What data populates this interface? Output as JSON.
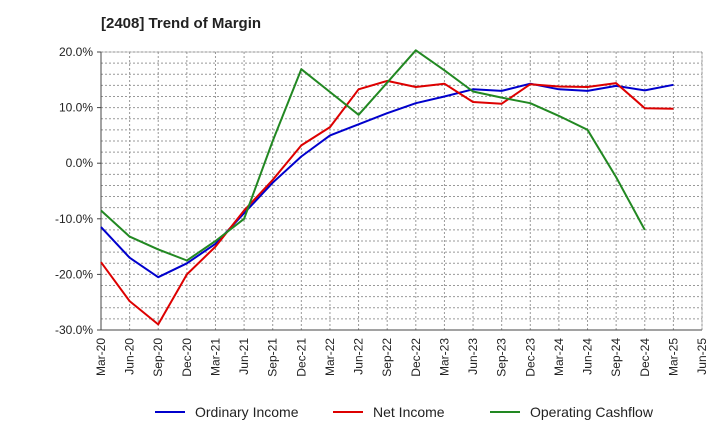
{
  "chart_data": {
    "type": "line",
    "title": "[2408]  Trend of Margin",
    "x": [
      "Mar-20",
      "Jun-20",
      "Sep-20",
      "Dec-20",
      "Mar-21",
      "Jun-21",
      "Sep-21",
      "Dec-21",
      "Mar-22",
      "Jun-22",
      "Sep-22",
      "Dec-22",
      "Mar-23",
      "Jun-23",
      "Sep-23",
      "Dec-23",
      "Mar-24",
      "Jun-24",
      "Sep-24",
      "Dec-24",
      "Mar-25",
      "Jun-25"
    ],
    "yticks": [
      "20.0%",
      "10.0%",
      "0.0%",
      "-10.0%",
      "-20.0%",
      "-30.0%"
    ],
    "ylim": [
      -30,
      20
    ],
    "grid": true,
    "legend_position": "bottom",
    "series": [
      {
        "name": "Ordinary Income",
        "color": "#0000cc",
        "values": [
          -11.5,
          -17.0,
          -20.5,
          -18.0,
          -14.5,
          -9.0,
          -3.5,
          1.2,
          5.0,
          7.0,
          9.0,
          10.8,
          12.0,
          13.3,
          13.0,
          14.3,
          13.3,
          13.0,
          13.9,
          13.1,
          14.1,
          null
        ]
      },
      {
        "name": "Net Income",
        "color": "#dd0000",
        "values": [
          -17.8,
          -24.8,
          -29.0,
          -20.0,
          -15.0,
          -8.5,
          -3.0,
          3.2,
          6.5,
          13.3,
          14.8,
          13.7,
          14.3,
          11.0,
          10.7,
          14.2,
          13.8,
          13.7,
          14.4,
          9.9,
          9.8,
          null
        ]
      },
      {
        "name": "Operating Cashflow",
        "color": "#228822",
        "values": [
          -8.5,
          -13.2,
          -15.5,
          -17.5,
          -14.0,
          -10.0,
          4.0,
          16.9,
          12.8,
          8.7,
          14.5,
          20.3,
          16.7,
          12.9,
          11.8,
          10.8,
          8.5,
          6.0,
          -2.5,
          -12.0,
          null,
          null
        ]
      }
    ]
  }
}
